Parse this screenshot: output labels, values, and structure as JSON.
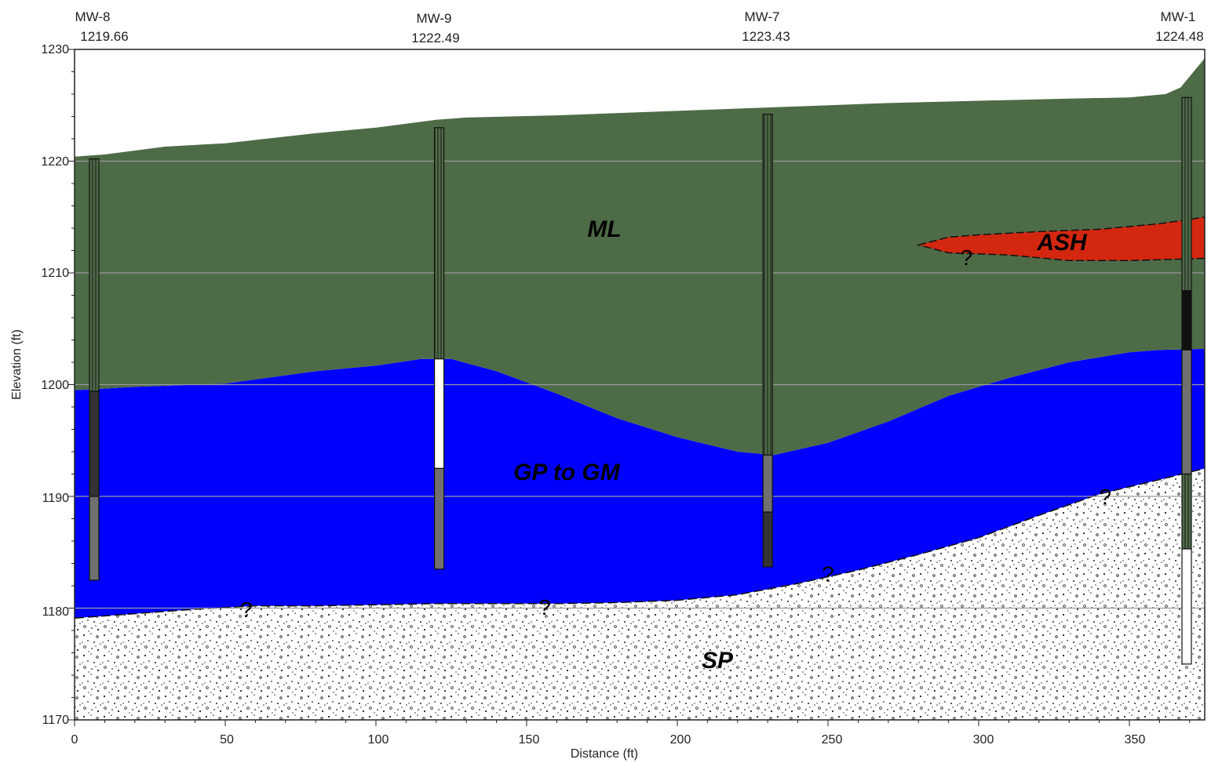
{
  "axes": {
    "x_title": "Distance (ft)",
    "y_title": "Elevation (ft)",
    "x_range": [
      0,
      375
    ],
    "y_range": [
      1170,
      1230
    ],
    "x_ticks": [
      "0",
      "50",
      "100",
      "150",
      "200",
      "250",
      "300",
      "350"
    ],
    "y_ticks": [
      "1170",
      "1180",
      "1190",
      "1200",
      "1210",
      "1220",
      "1230"
    ],
    "gridlines": "horizontal at 1180, 1190, 1200, 1210, 1220"
  },
  "wells": [
    {
      "name": "MW-8",
      "ground_elev": "1219.66",
      "x": 6.5
    },
    {
      "name": "MW-9",
      "ground_elev": "1222.49",
      "x": 121
    },
    {
      "name": "MW-7",
      "ground_elev": "1223.43",
      "x": 230
    },
    {
      "name": "MW-1",
      "ground_elev": "1224.48",
      "x": 369
    }
  ],
  "units": {
    "ml": "ML",
    "gp_gm": "GP to GM",
    "ash": "ASH",
    "sp": "SP"
  },
  "uncertainty_marker": "?",
  "colors": {
    "ml": "#4e6b47",
    "gp_gm": "#0000ff",
    "ash": "#d42710",
    "sp": "#ffffff",
    "grid": "#9a9a9a",
    "casing_dark": "#333333",
    "screen_gray": "#707070"
  },
  "profiles": {
    "ground_surface": [
      [
        0,
        1220.4
      ],
      [
        10,
        1220.6
      ],
      [
        30,
        1221.3
      ],
      [
        50,
        1221.6
      ],
      [
        80,
        1222.5
      ],
      [
        100,
        1223.0
      ],
      [
        120,
        1223.7
      ],
      [
        130,
        1223.9
      ],
      [
        160,
        1224.1
      ],
      [
        200,
        1224.5
      ],
      [
        230,
        1224.8
      ],
      [
        270,
        1225.2
      ],
      [
        300,
        1225.4
      ],
      [
        330,
        1225.6
      ],
      [
        350,
        1225.7
      ],
      [
        362,
        1226.0
      ],
      [
        367,
        1226.6
      ],
      [
        371,
        1227.9
      ],
      [
        375,
        1229.2
      ]
    ],
    "ml_base": [
      [
        0,
        1199.5
      ],
      [
        20,
        1199.8
      ],
      [
        50,
        1200.1
      ],
      [
        80,
        1201.2
      ],
      [
        100,
        1201.7
      ],
      [
        115,
        1202.3
      ],
      [
        125,
        1202.3
      ],
      [
        140,
        1201.2
      ],
      [
        160,
        1199.2
      ],
      [
        180,
        1197.0
      ],
      [
        200,
        1195.3
      ],
      [
        220,
        1194.0
      ],
      [
        232,
        1193.7
      ],
      [
        250,
        1194.8
      ],
      [
        270,
        1196.7
      ],
      [
        290,
        1199.0
      ],
      [
        310,
        1200.6
      ],
      [
        330,
        1202.0
      ],
      [
        350,
        1202.9
      ],
      [
        360,
        1203.1
      ],
      [
        375,
        1203.2
      ]
    ],
    "gp_base": [
      [
        0,
        1179.1
      ],
      [
        20,
        1179.5
      ],
      [
        40,
        1179.9
      ],
      [
        60,
        1180.2
      ],
      [
        80,
        1180.2
      ],
      [
        100,
        1180.3
      ],
      [
        120,
        1180.4
      ],
      [
        140,
        1180.4
      ],
      [
        160,
        1180.4
      ],
      [
        180,
        1180.5
      ],
      [
        200,
        1180.7
      ],
      [
        220,
        1181.2
      ],
      [
        240,
        1182.2
      ],
      [
        260,
        1183.4
      ],
      [
        280,
        1184.8
      ],
      [
        300,
        1186.3
      ],
      [
        320,
        1188.3
      ],
      [
        340,
        1190.2
      ],
      [
        360,
        1191.5
      ],
      [
        375,
        1192.5
      ]
    ],
    "ash_top": [
      [
        280,
        1212.5
      ],
      [
        290,
        1213.2
      ],
      [
        300,
        1213.4
      ],
      [
        320,
        1213.7
      ],
      [
        340,
        1213.9
      ],
      [
        360,
        1214.4
      ],
      [
        375,
        1215.0
      ]
    ],
    "ash_bottom": [
      [
        280,
        1212.5
      ],
      [
        290,
        1211.8
      ],
      [
        310,
        1211.6
      ],
      [
        330,
        1211.1
      ],
      [
        350,
        1211.1
      ],
      [
        375,
        1211.3
      ]
    ]
  },
  "well_segments": [
    [
      {
        "from": 1220.2,
        "to": 1199.4,
        "kind": "riser"
      },
      {
        "from": 1199.4,
        "to": 1190.0,
        "kind": "dark"
      },
      {
        "from": 1190.0,
        "to": 1182.5,
        "kind": "screen"
      }
    ],
    [
      {
        "from": 1223.0,
        "to": 1202.3,
        "kind": "riser"
      },
      {
        "from": 1202.3,
        "to": 1192.5,
        "kind": "blank"
      },
      {
        "from": 1192.5,
        "to": 1183.5,
        "kind": "screen"
      }
    ],
    [
      {
        "from": 1224.2,
        "to": 1193.7,
        "kind": "riser"
      },
      {
        "from": 1193.7,
        "to": 1188.6,
        "kind": "screen"
      },
      {
        "from": 1188.6,
        "to": 1183.7,
        "kind": "dark"
      }
    ],
    [
      {
        "from": 1225.7,
        "to": 1208.4,
        "kind": "riser"
      },
      {
        "from": 1208.4,
        "to": 1203.1,
        "kind": "black"
      },
      {
        "from": 1203.1,
        "to": 1192.0,
        "kind": "screen"
      },
      {
        "from": 1192.0,
        "to": 1185.3,
        "kind": "riser"
      },
      {
        "from": 1185.3,
        "to": 1175.0,
        "kind": "blank"
      }
    ]
  ],
  "question_marks": [
    [
      57,
      1179.2
    ],
    [
      156,
      1179.4
    ],
    [
      250,
      1182.4
    ],
    [
      296,
      1210.7
    ],
    [
      342,
      1189.3
    ]
  ]
}
